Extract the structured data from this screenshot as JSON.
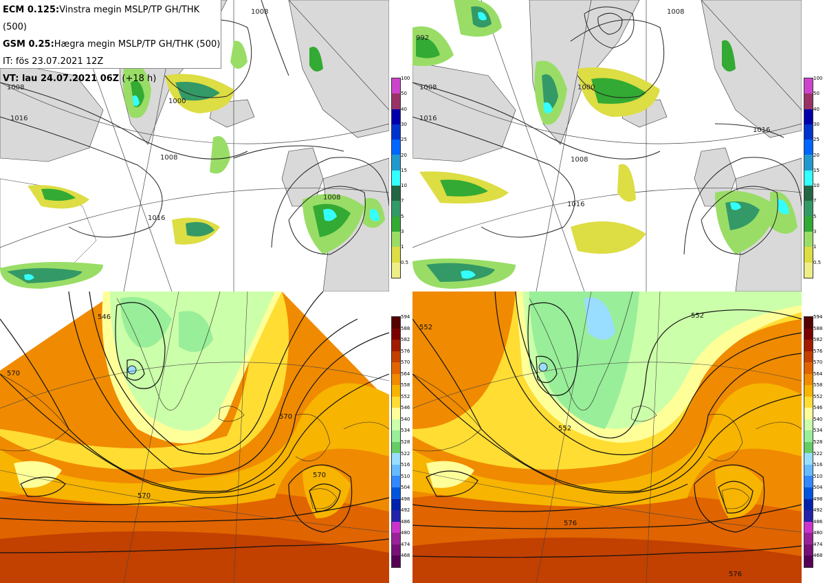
{
  "header": {
    "line1_bold": "ECM 0.125:",
    "line1_rest": "Vinstra megin MSLP/TP GH/THK (500)",
    "line2_bold": "GSM 0.25:",
    "line2_rest": "Hægra megin MSLP/TP GH/THK (500)",
    "line3": "IT: fös 23.07.2021 12Z",
    "line4_bold": "VT: lau 24.07.2021 06Z",
    "line4_rest": "(+18 h)"
  },
  "precip_scale": {
    "labels": [
      "100",
      "50",
      "40",
      "30",
      "25",
      "20",
      "15",
      "10",
      "7",
      "5",
      "3",
      "1",
      "0.5"
    ],
    "colors": [
      "#cc44cc",
      "#993366",
      "#0000aa",
      "#0033cc",
      "#0066ff",
      "#2299cc",
      "#33ffff",
      "#226644",
      "#339966",
      "#33aa33",
      "#99dd66",
      "#dddd44",
      "#eeee88"
    ]
  },
  "gh_scale": {
    "labels": [
      "594",
      "588",
      "582",
      "576",
      "570",
      "564",
      "558",
      "552",
      "546",
      "540",
      "534",
      "528",
      "522",
      "516",
      "510",
      "504",
      "498",
      "492",
      "486",
      "480",
      "474",
      "468"
    ],
    "colors": [
      "#550000",
      "#7a0000",
      "#a01b00",
      "#c24000",
      "#e06400",
      "#f08a00",
      "#f7b400",
      "#ffdd33",
      "#ffff99",
      "#ccffaa",
      "#99ee99",
      "#66cc66",
      "#99ddff",
      "#66bbff",
      "#3388ff",
      "#0055dd",
      "#0022aa",
      "#2222aa",
      "#cc33cc",
      "#992299",
      "#771177",
      "#550055"
    ]
  },
  "map_labels": {
    "ecm_mslp": [
      "1008",
      "1008",
      "1016",
      "1000",
      "1008",
      "1016",
      "1008"
    ],
    "gfs_mslp": [
      "1008",
      "1000",
      "1008",
      "1016",
      "1016",
      "1008",
      "1016",
      "992"
    ],
    "ecm_gh": [
      "546",
      "570",
      "570",
      "570",
      "570"
    ],
    "gfs_gh": [
      "552",
      "552",
      "552",
      "576",
      "576"
    ]
  },
  "colors": {
    "land": "#d9d9d9",
    "sea": "#ffffff",
    "isobar": "#222222",
    "graticule": "#444444"
  }
}
